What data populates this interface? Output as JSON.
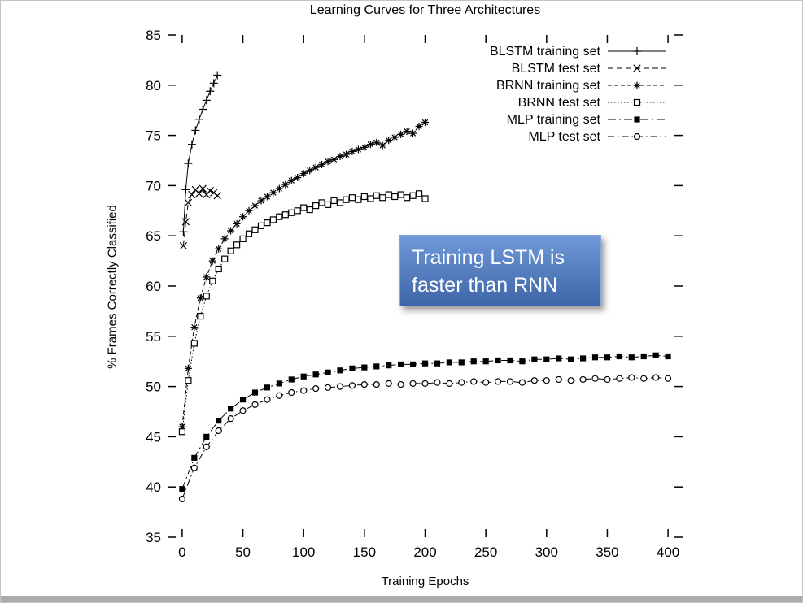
{
  "annotation": {
    "lines": [
      "Training LSTM is",
      "faster than RNN"
    ],
    "bg_top": "#7099d8",
    "bg_bottom": "#3d65a8",
    "text_color": "#ffffff"
  },
  "colors": {
    "line": "#000000",
    "background": "#ffffff",
    "bottom_bar": "#ababab"
  },
  "chart_data": {
    "type": "line",
    "title": "Learning Curves for Three Architectures",
    "xlabel": "Training Epochs",
    "ylabel": "% Frames Correctly Classified",
    "xlim": [
      -12,
      412
    ],
    "ylim": [
      35,
      85
    ],
    "xticks": [
      0,
      50,
      100,
      150,
      200,
      250,
      300,
      350,
      400
    ],
    "yticks": [
      35,
      40,
      45,
      50,
      55,
      60,
      65,
      70,
      75,
      80,
      85
    ],
    "grid": false,
    "legend_position": "top-right-inside",
    "series": [
      {
        "name": "BLSTM training set",
        "marker": "plus",
        "dash": "none",
        "x": [
          1,
          3,
          5,
          8,
          11,
          14,
          17,
          20,
          23,
          26,
          29
        ],
        "y": [
          65.4,
          69.6,
          72.2,
          74.1,
          75.5,
          76.6,
          77.6,
          78.5,
          79.4,
          80.2,
          81.0
        ]
      },
      {
        "name": "BLSTM test set",
        "marker": "cross",
        "dash": "7,4",
        "x": [
          1,
          3,
          5,
          8,
          11,
          14,
          17,
          20,
          23,
          26,
          29
        ],
        "y": [
          64.0,
          66.4,
          68.3,
          69.1,
          69.6,
          69.2,
          69.7,
          69.1,
          69.5,
          69.3,
          69.0
        ]
      },
      {
        "name": "BRNN training set",
        "marker": "asterisk",
        "dash": "5,3",
        "x": [
          0,
          5,
          10,
          15,
          20,
          25,
          30,
          35,
          40,
          45,
          50,
          55,
          60,
          65,
          70,
          75,
          80,
          85,
          90,
          95,
          100,
          105,
          110,
          115,
          120,
          125,
          130,
          135,
          140,
          145,
          150,
          155,
          160,
          165,
          170,
          175,
          180,
          185,
          190,
          195,
          200
        ],
        "y": [
          46.0,
          51.8,
          55.9,
          58.8,
          60.9,
          62.5,
          63.7,
          64.7,
          65.5,
          66.2,
          66.9,
          67.5,
          68.0,
          68.5,
          68.9,
          69.3,
          69.7,
          70.1,
          70.5,
          70.8,
          71.2,
          71.5,
          71.8,
          72.1,
          72.4,
          72.6,
          72.9,
          73.1,
          73.4,
          73.6,
          73.8,
          74.1,
          74.3,
          74.0,
          74.5,
          74.8,
          75.1,
          75.4,
          75.2,
          75.9,
          76.3
        ]
      },
      {
        "name": "BRNN test set",
        "marker": "square-open",
        "dash": "1.5,2.5",
        "x": [
          0,
          5,
          10,
          15,
          20,
          25,
          30,
          35,
          40,
          45,
          50,
          55,
          60,
          65,
          70,
          75,
          80,
          85,
          90,
          95,
          100,
          105,
          110,
          115,
          120,
          125,
          130,
          135,
          140,
          145,
          150,
          155,
          160,
          165,
          170,
          175,
          180,
          185,
          190,
          195,
          200
        ],
        "y": [
          45.5,
          50.6,
          54.3,
          57.0,
          59.0,
          60.5,
          61.7,
          62.7,
          63.5,
          64.1,
          64.7,
          65.2,
          65.6,
          66.0,
          66.3,
          66.6,
          66.9,
          67.1,
          67.3,
          67.5,
          67.8,
          67.6,
          68.0,
          68.3,
          68.1,
          68.5,
          68.3,
          68.6,
          68.8,
          68.6,
          68.9,
          68.7,
          69.0,
          68.8,
          69.1,
          68.9,
          69.1,
          68.8,
          69.0,
          69.2,
          68.7
        ]
      },
      {
        "name": "MLP training set",
        "marker": "square-filled",
        "dash": "10,4,2,4",
        "x": [
          0,
          10,
          20,
          30,
          40,
          50,
          60,
          70,
          80,
          90,
          100,
          110,
          120,
          130,
          140,
          150,
          160,
          170,
          180,
          190,
          200,
          210,
          220,
          230,
          240,
          250,
          260,
          270,
          280,
          290,
          300,
          310,
          320,
          330,
          340,
          350,
          360,
          370,
          380,
          390,
          400
        ],
        "y": [
          39.8,
          42.9,
          45.0,
          46.6,
          47.8,
          48.7,
          49.4,
          49.9,
          50.3,
          50.7,
          51.0,
          51.2,
          51.4,
          51.6,
          51.8,
          51.9,
          52.0,
          52.1,
          52.2,
          52.2,
          52.3,
          52.3,
          52.4,
          52.4,
          52.5,
          52.5,
          52.6,
          52.6,
          52.5,
          52.7,
          52.7,
          52.8,
          52.7,
          52.8,
          52.9,
          52.9,
          53.0,
          52.9,
          53.0,
          53.1,
          53.0
        ]
      },
      {
        "name": "MLP test set",
        "marker": "circle-open",
        "dash": "8,4,1.5,4",
        "x": [
          0,
          10,
          20,
          30,
          40,
          50,
          60,
          70,
          80,
          90,
          100,
          110,
          120,
          130,
          140,
          150,
          160,
          170,
          180,
          190,
          200,
          210,
          220,
          230,
          240,
          250,
          260,
          270,
          280,
          290,
          300,
          310,
          320,
          330,
          340,
          350,
          360,
          370,
          380,
          390,
          400
        ],
        "y": [
          38.8,
          41.9,
          44.0,
          45.6,
          46.8,
          47.6,
          48.2,
          48.7,
          49.1,
          49.4,
          49.6,
          49.8,
          49.9,
          50.0,
          50.1,
          50.2,
          50.2,
          50.3,
          50.2,
          50.3,
          50.3,
          50.4,
          50.3,
          50.4,
          50.5,
          50.4,
          50.5,
          50.5,
          50.4,
          50.6,
          50.6,
          50.7,
          50.6,
          50.7,
          50.8,
          50.7,
          50.8,
          50.9,
          50.8,
          50.9,
          50.8
        ]
      }
    ]
  }
}
